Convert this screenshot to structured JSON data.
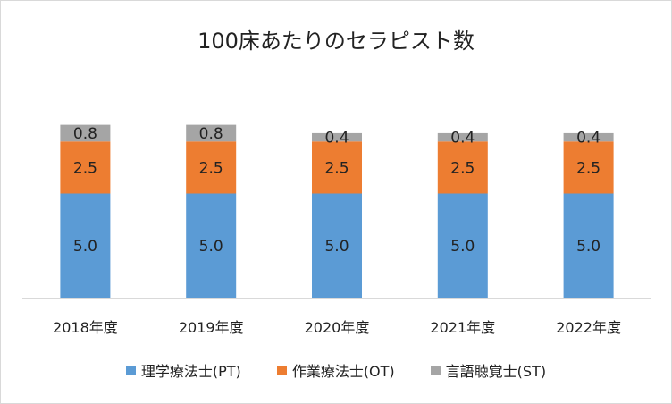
{
  "chart_data": {
    "type": "bar",
    "stacked": true,
    "title": "100床あたりのセラピスト数",
    "categories": [
      "2018年度",
      "2019年度",
      "2020年度",
      "2021年度",
      "2022年度"
    ],
    "series": [
      {
        "name": "理学療法士(PT)",
        "color": "#5b9bd5",
        "values": [
          5.0,
          5.0,
          5.0,
          5.0,
          5.0
        ],
        "labels": [
          "5.0",
          "5.0",
          "5.0",
          "5.0",
          "5.0"
        ]
      },
      {
        "name": "作業療法士(OT)",
        "color": "#ed7d31",
        "values": [
          2.5,
          2.5,
          2.5,
          2.5,
          2.5
        ],
        "labels": [
          "2.5",
          "2.5",
          "2.5",
          "2.5",
          "2.5"
        ]
      },
      {
        "name": "言語聴覚士(ST)",
        "color": "#a5a5a5",
        "values": [
          0.8,
          0.8,
          0.4,
          0.4,
          0.4
        ],
        "labels": [
          "0.8",
          "0.8",
          "0.4",
          "0.4",
          "0.4"
        ]
      }
    ],
    "ylim": [
      0,
      8.3
    ],
    "grid": false,
    "legend_position": "bottom"
  }
}
